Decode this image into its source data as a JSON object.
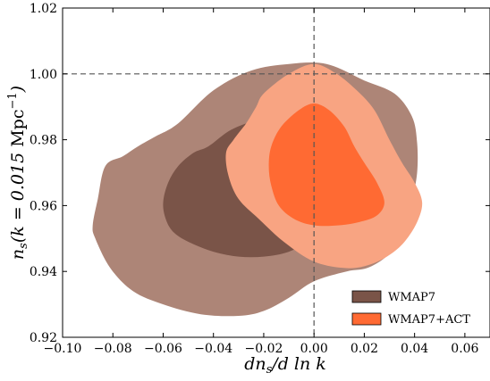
{
  "chart_data": {
    "type": "contour",
    "title": "",
    "xlabel": "dn_s/d ln k",
    "ylabel": "n_s(k = 0.015 Mpc^-1)",
    "xlim": [
      -0.1,
      0.07
    ],
    "ylim": [
      0.92,
      1.02
    ],
    "x_ticks": [
      -0.1,
      -0.08,
      -0.06,
      -0.04,
      -0.02,
      0.0,
      0.02,
      0.04,
      0.06
    ],
    "x_tick_labels": [
      "−0.10",
      "−0.08",
      "−0.06",
      "−0.04",
      "−0.02",
      "0.00",
      "0.02",
      "0.04",
      "0.06"
    ],
    "y_ticks": [
      0.92,
      0.94,
      0.96,
      0.98,
      1.0,
      1.02
    ],
    "y_tick_labels": [
      "0.92",
      "0.94",
      "0.96",
      "0.98",
      "1.00",
      "1.02"
    ],
    "reference_lines": {
      "x": 0.0,
      "y": 1.0,
      "style": "dashed"
    },
    "legend_position": "bottom-right",
    "colors": {
      "wmap7_outer": "#ad8577",
      "wmap7_inner": "#7a5448",
      "act_outer": "#f8a482",
      "act_inner": "#ff6a33"
    },
    "series": [
      {
        "name": "WMAP7",
        "legend_color": "#7a5448",
        "contours": [
          {
            "level": "95%",
            "color": "#ad8577",
            "points": [
              [
                -0.054,
                0.985
              ],
              [
                -0.04,
                0.995
              ],
              [
                -0.025,
                1.001
              ],
              [
                -0.01,
                1.003
              ],
              [
                0.005,
                1.003
              ],
              [
                0.02,
                0.998
              ],
              [
                0.032,
                0.994
              ],
              [
                0.039,
                0.987
              ],
              [
                0.041,
                0.979
              ],
              [
                0.041,
                0.97
              ],
              [
                0.039,
                0.962
              ],
              [
                0.036,
                0.957
              ],
              [
                0.033,
                0.948
              ],
              [
                0.028,
                0.944
              ],
              [
                0.021,
                0.941
              ],
              [
                0.013,
                0.94
              ],
              [
                0.0,
                0.937
              ],
              [
                -0.01,
                0.932
              ],
              [
                -0.02,
                0.928
              ],
              [
                -0.03,
                0.9265
              ],
              [
                -0.045,
                0.927
              ],
              [
                -0.06,
                0.93
              ],
              [
                -0.072,
                0.934
              ],
              [
                -0.081,
                0.941
              ],
              [
                -0.087,
                0.95
              ],
              [
                -0.088,
                0.954
              ],
              [
                -0.086,
                0.962
              ],
              [
                -0.083,
                0.972
              ],
              [
                -0.076,
                0.975
              ],
              [
                -0.07,
                0.978
              ],
              [
                -0.063,
                0.981
              ]
            ]
          },
          {
            "level": "68%",
            "color": "#7a5448",
            "points": [
              [
                -0.042,
                0.978
              ],
              [
                -0.033,
                0.983
              ],
              [
                -0.022,
                0.986
              ],
              [
                -0.01,
                0.987
              ],
              [
                0.0,
                0.985
              ],
              [
                0.007,
                0.979
              ],
              [
                0.01,
                0.971
              ],
              [
                0.01,
                0.963
              ],
              [
                0.006,
                0.955
              ],
              [
                0.0,
                0.95
              ],
              [
                -0.01,
                0.946
              ],
              [
                -0.02,
                0.9445
              ],
              [
                -0.03,
                0.9445
              ],
              [
                -0.04,
                0.946
              ],
              [
                -0.05,
                0.949
              ],
              [
                -0.056,
                0.952
              ],
              [
                -0.059,
                0.956
              ],
              [
                -0.06,
                0.961
              ],
              [
                -0.058,
                0.967
              ],
              [
                -0.054,
                0.972
              ],
              [
                -0.048,
                0.976
              ]
            ]
          }
        ]
      },
      {
        "name": "WMAP7+ACT",
        "legend_color": "#ff6a33",
        "contours": [
          {
            "level": "95%",
            "color": "#f8a482",
            "points": [
              [
                -0.02,
                0.994
              ],
              [
                -0.01,
                1.0
              ],
              [
                0.0,
                1.003
              ],
              [
                0.009,
                1.0
              ],
              [
                0.017,
                0.995
              ],
              [
                0.024,
                0.989
              ],
              [
                0.03,
                0.98
              ],
              [
                0.035,
                0.973
              ],
              [
                0.04,
                0.967
              ],
              [
                0.043,
                0.961
              ],
              [
                0.041,
                0.955
              ],
              [
                0.036,
                0.949
              ],
              [
                0.03,
                0.945
              ],
              [
                0.022,
                0.942
              ],
              [
                0.013,
                0.941
              ],
              [
                0.0,
                0.943
              ],
              [
                -0.012,
                0.949
              ],
              [
                -0.022,
                0.956
              ],
              [
                -0.03,
                0.962
              ],
              [
                -0.034,
                0.969
              ],
              [
                -0.035,
                0.976
              ],
              [
                -0.032,
                0.98
              ],
              [
                -0.027,
                0.985
              ],
              [
                -0.023,
                0.99
              ]
            ]
          },
          {
            "level": "68%",
            "color": "#ff6a33",
            "points": [
              [
                -0.013,
                0.984
              ],
              [
                -0.006,
                0.989
              ],
              [
                0.0,
                0.991
              ],
              [
                0.006,
                0.989
              ],
              [
                0.012,
                0.984
              ],
              [
                0.016,
                0.978
              ],
              [
                0.02,
                0.973
              ],
              [
                0.025,
                0.967
              ],
              [
                0.028,
                0.961
              ],
              [
                0.025,
                0.957
              ],
              [
                0.018,
                0.955
              ],
              [
                0.01,
                0.954
              ],
              [
                0.0,
                0.954
              ],
              [
                -0.008,
                0.956
              ],
              [
                -0.014,
                0.96
              ],
              [
                -0.017,
                0.966
              ],
              [
                -0.018,
                0.972
              ],
              [
                -0.017,
                0.978
              ]
            ]
          }
        ]
      }
    ]
  }
}
